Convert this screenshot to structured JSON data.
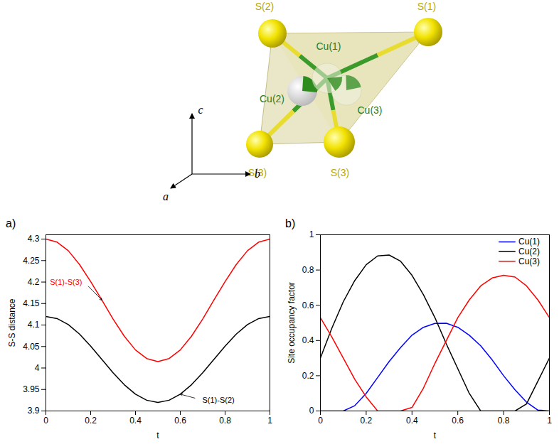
{
  "diagram": {
    "atoms": [
      {
        "label": "S(2)",
        "element": "S"
      },
      {
        "label": "S(1)",
        "element": "S"
      },
      {
        "label": "S(3)",
        "element": "S"
      },
      {
        "label": "S(3)",
        "element": "S"
      },
      {
        "label": "Cu(1)",
        "element": "Cu"
      },
      {
        "label": "Cu(2)",
        "element": "Cu"
      },
      {
        "label": "Cu(3)",
        "element": "Cu"
      }
    ],
    "axes": [
      "c",
      "a",
      "b"
    ]
  },
  "chart_data": [
    {
      "type": "line",
      "panel_label": "a)",
      "x": [
        0,
        0.05,
        0.1,
        0.15,
        0.2,
        0.25,
        0.3,
        0.35,
        0.4,
        0.45,
        0.5,
        0.55,
        0.6,
        0.65,
        0.7,
        0.75,
        0.8,
        0.85,
        0.9,
        0.95,
        1
      ],
      "xlim": [
        0,
        1
      ],
      "xticks": [
        0,
        0.2,
        0.4,
        0.6,
        0.8,
        1
      ],
      "ylim": [
        3.9,
        4.31
      ],
      "yticks": [
        3.9,
        3.95,
        4,
        4.05,
        4.1,
        4.15,
        4.2,
        4.25,
        4.3
      ],
      "xlabel": "t",
      "ylabel": "S-S distance",
      "series": [
        {
          "name": "S(1)-S(3)",
          "color": "#ff0000",
          "values": [
            4.3,
            4.293,
            4.273,
            4.241,
            4.201,
            4.158,
            4.114,
            4.074,
            4.042,
            4.022,
            4.015,
            4.022,
            4.042,
            4.074,
            4.114,
            4.158,
            4.201,
            4.241,
            4.273,
            4.293,
            4.3
          ]
        },
        {
          "name": "S(1)-S(2)",
          "color": "#000000",
          "values": [
            4.12,
            4.115,
            4.101,
            4.079,
            4.051,
            4.02,
            3.989,
            3.961,
            3.939,
            3.925,
            3.92,
            3.925,
            3.939,
            3.961,
            3.989,
            4.02,
            4.051,
            4.079,
            4.101,
            4.115,
            4.12
          ]
        }
      ]
    },
    {
      "type": "line",
      "panel_label": "b)",
      "legend": "top-right",
      "x": [
        0,
        0.05,
        0.1,
        0.15,
        0.2,
        0.25,
        0.3,
        0.35,
        0.4,
        0.45,
        0.5,
        0.55,
        0.6,
        0.65,
        0.7,
        0.75,
        0.8,
        0.85,
        0.9,
        0.95,
        1
      ],
      "xlim": [
        0,
        1
      ],
      "xticks": [
        0,
        0.2,
        0.4,
        0.6,
        0.8,
        1
      ],
      "ylim": [
        0,
        1
      ],
      "yticks": [
        0,
        0.2,
        0.4,
        0.6,
        0.8,
        1
      ],
      "xlabel": "t",
      "ylabel": "Site occupancy factor",
      "series": [
        {
          "name": "Cu(1)",
          "color": "#0000ff",
          "values": [
            0,
            0,
            0,
            0.03,
            0.1,
            0.19,
            0.28,
            0.36,
            0.43,
            0.475,
            0.497,
            0.498,
            0.475,
            0.43,
            0.37,
            0.29,
            0.2,
            0.12,
            0.05,
            0.005,
            0
          ]
        },
        {
          "name": "Cu(2)",
          "color": "#000000",
          "values": [
            0.3,
            0.47,
            0.62,
            0.74,
            0.83,
            0.88,
            0.885,
            0.85,
            0.77,
            0.66,
            0.53,
            0.38,
            0.24,
            0.1,
            0,
            0,
            0,
            0,
            0.04,
            0.17,
            0.3
          ]
        },
        {
          "name": "Cu(3)",
          "color": "#ff0000",
          "values": [
            0.53,
            0.42,
            0.3,
            0.18,
            0.08,
            0,
            0,
            0,
            0.02,
            0.13,
            0.27,
            0.4,
            0.53,
            0.63,
            0.71,
            0.755,
            0.77,
            0.76,
            0.71,
            0.63,
            0.53
          ]
        }
      ]
    }
  ]
}
